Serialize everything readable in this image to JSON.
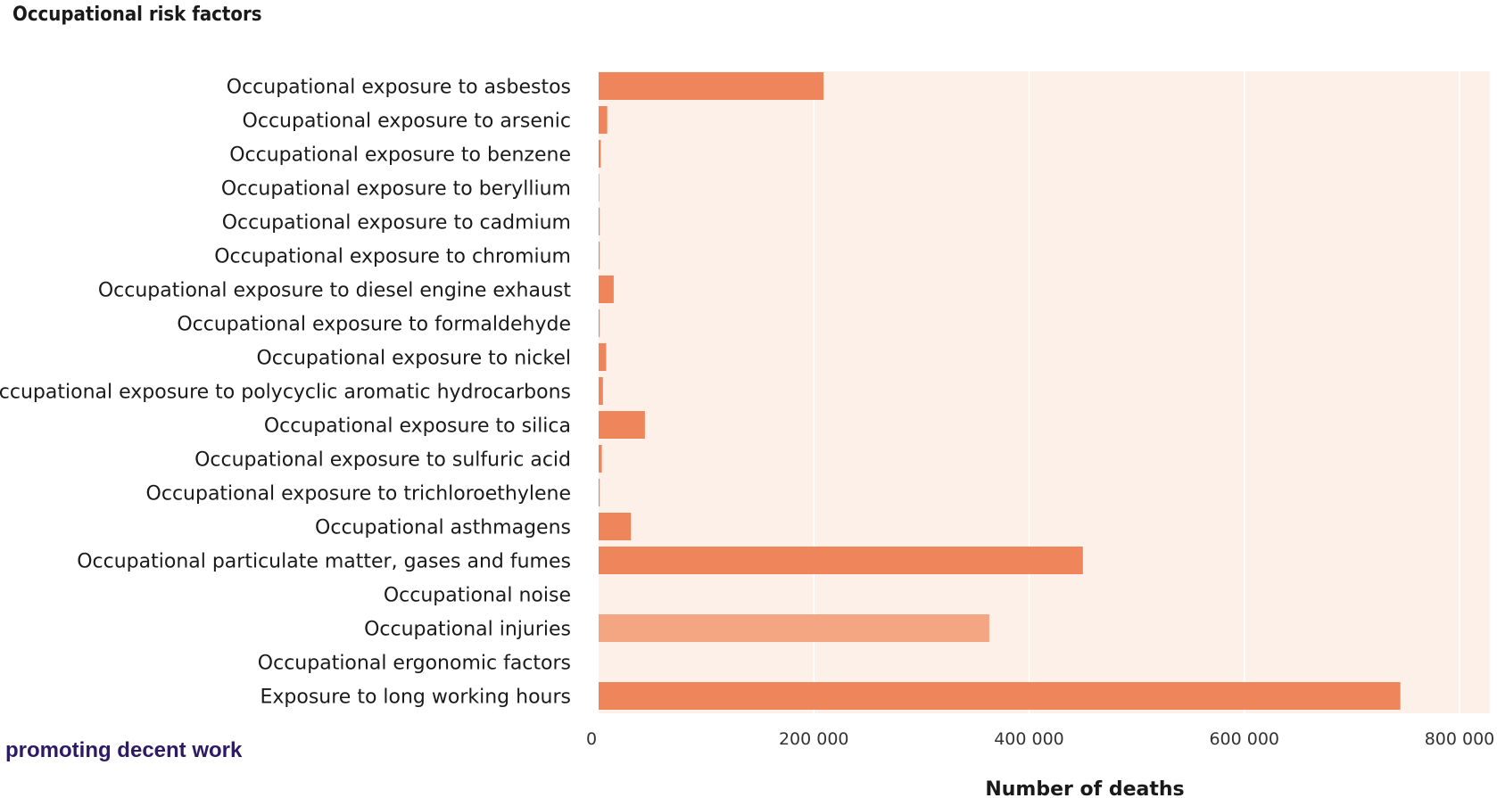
{
  "title": "Occupational risk factors",
  "footer": "promoting decent work",
  "colors": {
    "background": "#fdf0e8",
    "bar": "#ef855a",
    "bar_highlight": "#f4a582",
    "grid": "#ffffff"
  },
  "chart_data": {
    "type": "bar",
    "orientation": "horizontal",
    "title": "Occupational risk factors",
    "xlabel": "Number of deaths",
    "ylabel": "",
    "xlim": [
      0,
      800000
    ],
    "xticks": [
      0,
      200000,
      400000,
      600000,
      800000
    ],
    "xtick_labels": [
      "0",
      "200 000",
      "400 000",
      "600 000",
      "800 000"
    ],
    "grid": true,
    "categories": [
      "Occupational exposure to asbestos",
      "Occupational exposure to arsenic",
      "Occupational exposure to benzene",
      "Occupational exposure to beryllium",
      "Occupational exposure to cadmium",
      "Occupational exposure to chromium",
      "Occupational exposure to diesel engine exhaust",
      "Occupational exposure to formaldehyde",
      "Occupational exposure to nickel",
      "Occupational exposure to polycyclic aromatic hydrocarbons",
      "Occupational exposure to silica",
      "Occupational exposure to sulfuric acid",
      "Occupational exposure to trichloroethylene",
      "Occupational asthmagens",
      "Occupational particulate matter, gases and fumes",
      "Occupational noise",
      "Occupational injuries",
      "Occupational ergonomic factors",
      "Exposure to long working hours"
    ],
    "values": [
      209000,
      8000,
      2000,
      500,
      1000,
      1000,
      14000,
      1000,
      7000,
      4000,
      43000,
      3000,
      1000,
      30000,
      450000,
      0,
      363000,
      0,
      745000
    ],
    "highlighted": [
      false,
      false,
      false,
      false,
      false,
      false,
      false,
      false,
      false,
      false,
      false,
      false,
      false,
      false,
      false,
      false,
      true,
      false,
      false
    ]
  }
}
